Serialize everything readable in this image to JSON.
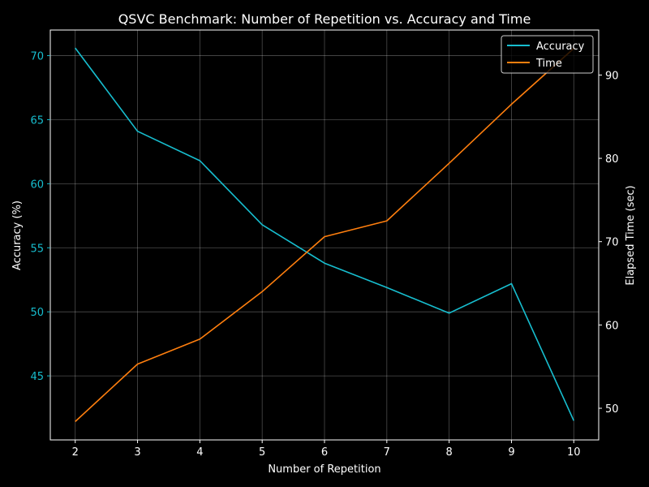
{
  "chart_data": {
    "type": "line",
    "title": "QSVC Benchmark: Number of Repetition vs. Accuracy and Time",
    "xlabel": "Number of Repetition",
    "x": [
      2,
      3,
      4,
      5,
      6,
      7,
      8,
      9,
      10
    ],
    "xticks": [
      "2",
      "3",
      "4",
      "5",
      "6",
      "7",
      "8",
      "9",
      "10"
    ],
    "xlim": [
      1.6,
      10.4
    ],
    "grid": true,
    "legend_position": "top-right",
    "background": "#000000",
    "series": [
      {
        "name": "Accuracy",
        "axis": "left",
        "color": "#17becf",
        "values": [
          70.6,
          64.1,
          61.8,
          56.8,
          53.8,
          51.9,
          49.9,
          52.2,
          41.5
        ]
      },
      {
        "name": "Time",
        "axis": "right",
        "color": "#ff7f0e",
        "values": [
          48.4,
          55.3,
          58.3,
          64.0,
          70.6,
          72.5,
          79.4,
          86.5,
          93.2
        ]
      }
    ],
    "y_left": {
      "label": "Accuracy (%)",
      "color": "#17becf",
      "lim": [
        40.0,
        72.0
      ],
      "ticks": [
        45,
        50,
        55,
        60,
        65,
        70
      ]
    },
    "y_right": {
      "label": "Elapsed Time (sec)",
      "color": "#ff7f0e",
      "lim": [
        46.2,
        95.4
      ],
      "ticks": [
        50,
        60,
        70,
        80,
        90
      ]
    }
  }
}
